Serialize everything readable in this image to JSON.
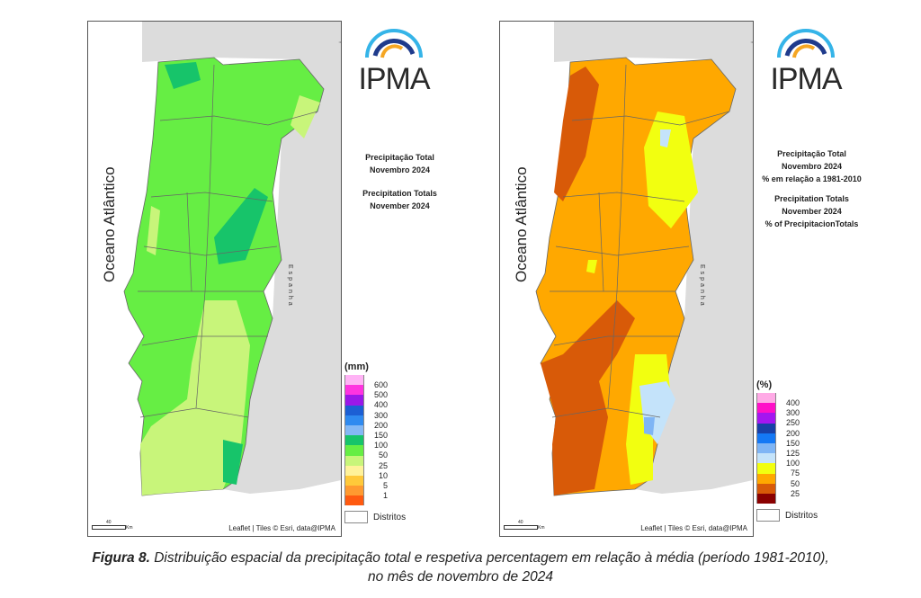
{
  "maps": [
    {
      "ocean_label": "Oceano Atlântico",
      "spain_label": "Espanha",
      "logo_text": "IPMA",
      "title_lines": [
        "Precipitação Total",
        "Novembro 2024",
        "",
        "Precipitation Totals",
        "November 2024"
      ],
      "attribution": "Leaflet | Tiles © Esri, data@IPMA",
      "scale_label": "40",
      "scale_unit": "Km",
      "legend": {
        "unit": "(mm)",
        "colors": [
          "#ffb3f5",
          "#ff33e0",
          "#9a18e8",
          "#1c5fd4",
          "#2f8af0",
          "#84b8f5",
          "#17c46a",
          "#66ee44",
          "#c8f57a",
          "#fff29a",
          "#ffc93a",
          "#ff9a30",
          "#ff5a10"
        ],
        "labels": [
          "600",
          "500",
          "400",
          "300",
          "200",
          "150",
          "100",
          "50",
          "25",
          "10",
          "5",
          "1"
        ],
        "districts_label": "Distritos"
      }
    },
    {
      "ocean_label": "Oceano Atlântico",
      "spain_label": "Espanha",
      "logo_text": "IPMA",
      "title_lines": [
        "Precipitação Total",
        "Novembro 2024",
        "% em relação a 1981-2010",
        "",
        "Precipitation Totals",
        "November 2024",
        "% of PrecipitacionTotals"
      ],
      "attribution": "Leaflet | Tiles © Esri, data@IPMA",
      "scale_label": "40",
      "scale_unit": "Km",
      "legend": {
        "unit": "(%)",
        "colors": [
          "#ffaae6",
          "#ff10c8",
          "#a416f0",
          "#1840a8",
          "#1478f5",
          "#7fb5f5",
          "#c4e3fa",
          "#f2ff10",
          "#ffa800",
          "#d85a08",
          "#8a0000"
        ],
        "labels": [
          "400",
          "300",
          "250",
          "200",
          "150",
          "125",
          "100",
          "75",
          "50",
          "25"
        ],
        "districts_label": "Distritos"
      }
    }
  ],
  "caption": {
    "label": "Figura 8.",
    "text_line1": " Distribuição espacial da precipitação total e respetiva percentagem em relação à média (período 1981-2010),",
    "text_line2": "no mês de novembro de 2024"
  }
}
